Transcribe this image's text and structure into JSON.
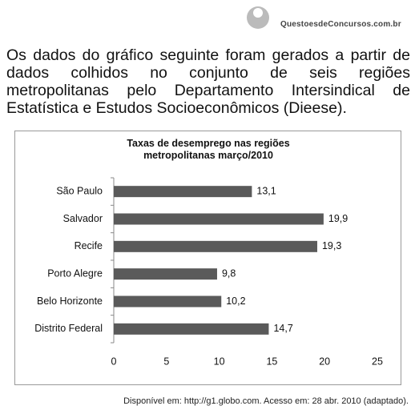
{
  "header": {
    "logo": "QuestoesdeConcursos.com.br"
  },
  "paragraph": "Os dados do gráfico seguinte foram gerados a partir de dados colhidos no conjunto de seis regiões metropolitanas pelo Departamento Intersindical de Estatística e Estudos Socioeconômicos (Dieese).",
  "chart_data": {
    "type": "hbar",
    "title": "Taxas de desemprego nas regiões metropolitanas março/2010",
    "categories": [
      "São Paulo",
      "Salvador",
      "Recife",
      "Porto Alegre",
      "Belo Horizonte",
      "Distrito Federal"
    ],
    "values": [
      13.1,
      19.9,
      19.3,
      9.8,
      10.2,
      14.7
    ],
    "value_labels": [
      "13,1",
      "19,9",
      "19,3",
      "9,8",
      "10,2",
      "14,7"
    ],
    "color": "#5a5a5a",
    "xlim": [
      0,
      25
    ],
    "xticks": [
      0,
      5,
      10,
      15,
      20,
      25
    ]
  },
  "source": "Disponível em: http://g1.globo.com. Acesso em: 28 abr. 2010 (adaptado)."
}
